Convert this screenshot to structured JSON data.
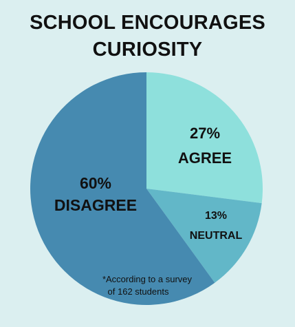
{
  "chart_data": {
    "type": "pie",
    "title_lines": [
      "SCHOOL ENCOURAGES",
      "CURIOSITY"
    ],
    "slices": [
      {
        "label": "AGREE",
        "value": 27,
        "display": "27%",
        "color": "#8ee0dc"
      },
      {
        "label": "NEUTRAL",
        "value": 13,
        "display": "13%",
        "color": "#62b7c8"
      },
      {
        "label": "DISAGREE",
        "value": 60,
        "display": "60%",
        "color": "#468ab0"
      }
    ],
    "note_lines": [
      "*According to a survey",
      "of 162 students"
    ]
  }
}
